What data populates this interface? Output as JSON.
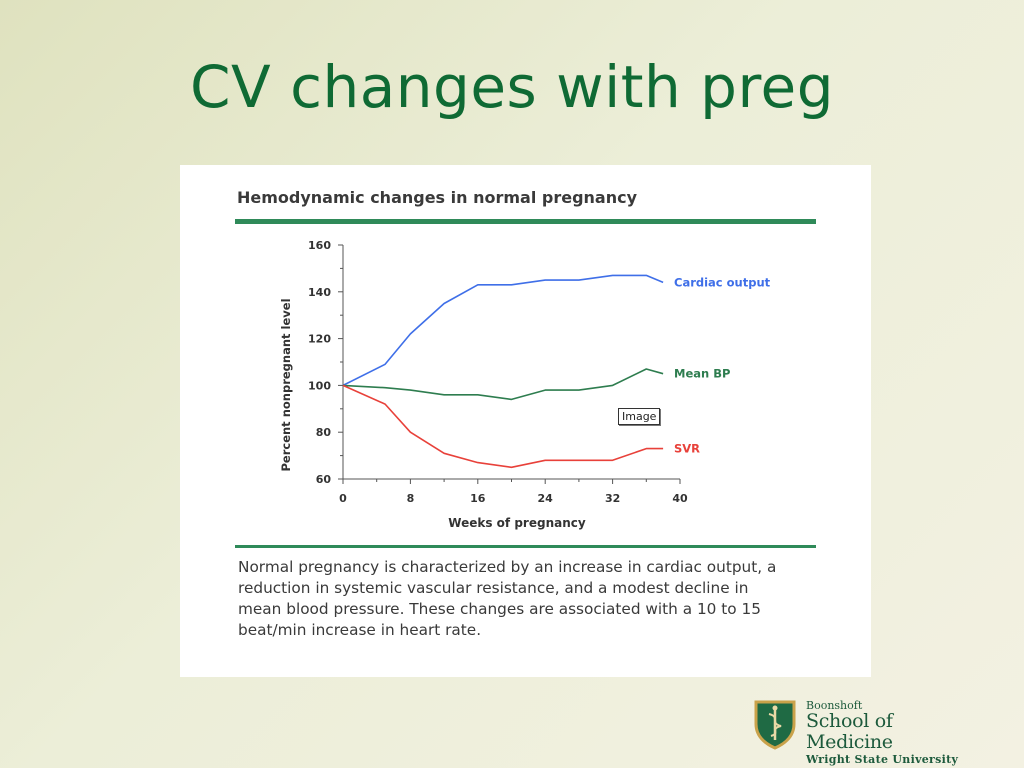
{
  "slide": {
    "title": "CV changes with preg"
  },
  "figure": {
    "tooltip": "Image",
    "caption": "Normal pregnancy is characterized by an increase in cardiac output, a reduction in systemic vascular resistance, and a modest decline in mean blood pressure. These changes are associated with a 10 to 15 beat/min increase in heart rate."
  },
  "chart_data": {
    "type": "line",
    "title": "Hemodynamic changes in normal pregnancy",
    "xlabel": "Weeks of pregnancy",
    "ylabel": "Percent nonpregnant level",
    "xlim": [
      0,
      40
    ],
    "ylim": [
      60,
      160
    ],
    "xticks": [
      0,
      8,
      16,
      24,
      32,
      40
    ],
    "yticks": [
      60,
      80,
      100,
      120,
      140,
      160
    ],
    "grid": false,
    "legend": "inline-right",
    "series": [
      {
        "name": "Cardiac output",
        "color": "#3f6fe8",
        "points": [
          [
            0,
            100
          ],
          [
            5,
            109
          ],
          [
            8,
            122
          ],
          [
            12,
            135
          ],
          [
            16,
            143
          ],
          [
            20,
            143
          ],
          [
            24,
            145
          ],
          [
            28,
            145
          ],
          [
            32,
            147
          ],
          [
            36,
            147
          ],
          [
            38,
            144
          ]
        ]
      },
      {
        "name": "Mean BP",
        "color": "#2e7d4f",
        "points": [
          [
            0,
            100
          ],
          [
            5,
            99
          ],
          [
            8,
            98
          ],
          [
            12,
            96
          ],
          [
            16,
            96
          ],
          [
            20,
            94
          ],
          [
            24,
            98
          ],
          [
            28,
            98
          ],
          [
            32,
            100
          ],
          [
            36,
            107
          ],
          [
            38,
            105
          ]
        ]
      },
      {
        "name": "SVR",
        "color": "#e8413a",
        "points": [
          [
            0,
            100
          ],
          [
            5,
            92
          ],
          [
            8,
            80
          ],
          [
            12,
            71
          ],
          [
            16,
            67
          ],
          [
            20,
            65
          ],
          [
            24,
            68
          ],
          [
            28,
            68
          ],
          [
            32,
            68
          ],
          [
            36,
            73
          ],
          [
            38,
            73
          ]
        ]
      }
    ]
  },
  "logo": {
    "line1": "Boonshoft",
    "line2": "School of Medicine",
    "line3": "Wright State University"
  }
}
